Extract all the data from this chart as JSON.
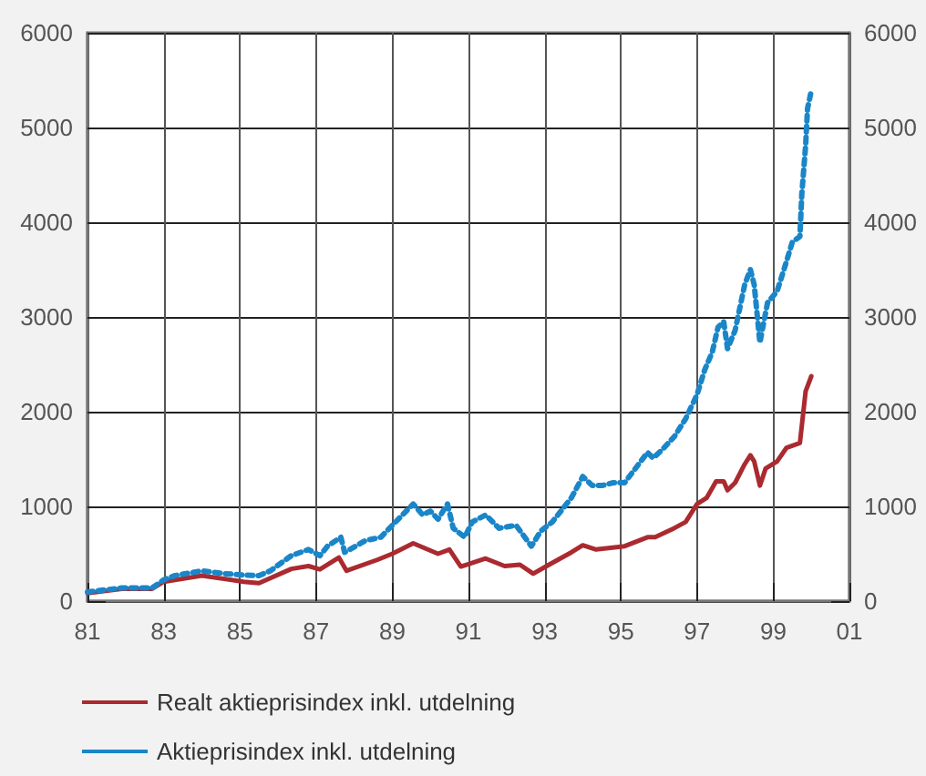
{
  "chart_data": {
    "type": "line",
    "xlim": [
      1981,
      2001
    ],
    "xticks": [
      {
        "value": 1981,
        "label": "81"
      },
      {
        "value": 1983,
        "label": "83"
      },
      {
        "value": 1985,
        "label": "85"
      },
      {
        "value": 1987,
        "label": "87"
      },
      {
        "value": 1989,
        "label": "89"
      },
      {
        "value": 1991,
        "label": "91"
      },
      {
        "value": 1993,
        "label": "93"
      },
      {
        "value": 1995,
        "label": "95"
      },
      {
        "value": 1997,
        "label": "97"
      },
      {
        "value": 1999,
        "label": "99"
      },
      {
        "value": 2001,
        "label": "01"
      }
    ],
    "ylim": [
      0,
      6000
    ],
    "yticks": [
      0,
      1000,
      2000,
      3000,
      4000,
      5000,
      6000
    ],
    "y2lim": [
      0,
      6000
    ],
    "y2ticks": [
      0,
      1000,
      2000,
      3000,
      4000,
      5000,
      6000
    ],
    "grid": true,
    "legend": "bottom",
    "marker": "none",
    "series": [
      {
        "name": "Realt aktieprisindex inkl. utdelning",
        "color": "#aa2a30",
        "line_style": "solid",
        "x": [
          1981.0,
          1981.9,
          1982.7,
          1983.0,
          1984.0,
          1985.1,
          1985.5,
          1986.35,
          1986.8,
          1987.1,
          1987.6,
          1987.8,
          1988.6,
          1989.0,
          1989.55,
          1990.2,
          1990.5,
          1990.8,
          1991.45,
          1991.95,
          1992.35,
          1992.7,
          1993.05,
          1993.7,
          1994.0,
          1994.35,
          1995.1,
          1995.7,
          1995.9,
          1996.4,
          1996.7,
          1997.0,
          1997.25,
          1997.5,
          1997.7,
          1997.8,
          1998.0,
          1998.25,
          1998.4,
          1998.5,
          1998.65,
          1998.8,
          1999.1,
          1999.35,
          1999.7,
          1999.85,
          2000.0
        ],
        "values": [
          85,
          130,
          130,
          205,
          270,
          205,
          190,
          340,
          370,
          335,
          460,
          320,
          435,
          500,
          610,
          500,
          545,
          365,
          450,
          370,
          385,
          290,
          370,
          515,
          590,
          545,
          580,
          675,
          675,
          770,
          835,
          1025,
          1090,
          1265,
          1265,
          1170,
          1250,
          1445,
          1540,
          1475,
          1220,
          1400,
          1475,
          1620,
          1670,
          2215,
          2375
        ]
      },
      {
        "name": "Aktieprisindex inkl. utdelning",
        "color": "#1a86c8",
        "line_style": "dotted",
        "x": [
          1981.0,
          1981.9,
          1982.7,
          1983.0,
          1983.3,
          1984.0,
          1984.6,
          1985.1,
          1985.5,
          1985.8,
          1986.35,
          1986.8,
          1987.1,
          1987.3,
          1987.65,
          1987.75,
          1988.3,
          1988.7,
          1989.0,
          1989.55,
          1989.8,
          1990.0,
          1990.2,
          1990.45,
          1990.6,
          1990.9,
          1991.1,
          1991.45,
          1991.8,
          1992.25,
          1992.65,
          1992.9,
          1993.2,
          1993.7,
          1994.0,
          1994.25,
          1994.5,
          1994.8,
          1995.1,
          1995.7,
          1995.85,
          1996.1,
          1996.4,
          1996.7,
          1997.0,
          1997.2,
          1997.4,
          1997.55,
          1997.7,
          1997.8,
          1998.0,
          1998.25,
          1998.4,
          1998.5,
          1998.65,
          1998.85,
          1999.1,
          1999.35,
          1999.5,
          1999.7,
          1999.75,
          1999.85,
          1999.9,
          2000.0
        ],
        "values": [
          96,
          140,
          140,
          225,
          270,
          320,
          290,
          275,
          270,
          320,
          480,
          545,
          480,
          580,
          675,
          515,
          640,
          675,
          800,
          1025,
          910,
          950,
          865,
          1025,
          770,
          675,
          835,
          910,
          770,
          800,
          580,
          740,
          835,
          1090,
          1315,
          1220,
          1220,
          1250,
          1250,
          1570,
          1510,
          1605,
          1735,
          1925,
          2180,
          2440,
          2630,
          2890,
          2950,
          2665,
          2860,
          3340,
          3500,
          3340,
          2730,
          3150,
          3270,
          3590,
          3790,
          3850,
          4300,
          4810,
          5200,
          5390
        ]
      }
    ]
  }
}
